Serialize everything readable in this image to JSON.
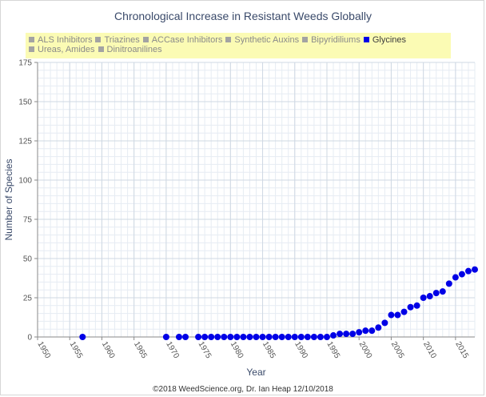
{
  "chart_data": {
    "type": "scatter",
    "title": "Chronological Increase in Resistant Weeds Globally",
    "xlabel": "Year",
    "ylabel": "Number of Species",
    "xlim": [
      1950,
      2018
    ],
    "ylim": [
      0,
      175
    ],
    "x_ticks": [
      "1950",
      "1955",
      "1960",
      "1965",
      "1970",
      "1975",
      "1980",
      "1985",
      "1990",
      "1995",
      "2000",
      "2005",
      "2010",
      "2015"
    ],
    "y_ticks": [
      "0",
      "25",
      "50",
      "75",
      "100",
      "125",
      "150",
      "175"
    ],
    "grid": true,
    "legend_position": "top",
    "legend": [
      {
        "name": "ALS Inhibitors",
        "color": "#a3a3a3",
        "active": false
      },
      {
        "name": "Triazines",
        "color": "#a3a3a3",
        "active": false
      },
      {
        "name": "ACCase Inhibitors",
        "color": "#a3a3a3",
        "active": false
      },
      {
        "name": "Synthetic Auxins",
        "color": "#a3a3a3",
        "active": false
      },
      {
        "name": "Bipyridiliums",
        "color": "#a3a3a3",
        "active": false
      },
      {
        "name": "Glycines",
        "color": "#0000e6",
        "active": true
      },
      {
        "name": "Ureas, Amides",
        "color": "#a3a3a3",
        "active": false
      },
      {
        "name": "Dinitroanilines",
        "color": "#a3a3a3",
        "active": false
      }
    ],
    "series": [
      {
        "name": "Glycines",
        "color": "#0000e6",
        "points": [
          [
            1957,
            0
          ],
          [
            1970,
            0
          ],
          [
            1972,
            0
          ],
          [
            1973,
            0
          ],
          [
            1975,
            0
          ],
          [
            1976,
            0
          ],
          [
            1977,
            0
          ],
          [
            1978,
            0
          ],
          [
            1979,
            0
          ],
          [
            1980,
            0
          ],
          [
            1981,
            0
          ],
          [
            1982,
            0
          ],
          [
            1983,
            0
          ],
          [
            1984,
            0
          ],
          [
            1985,
            0
          ],
          [
            1986,
            0
          ],
          [
            1987,
            0
          ],
          [
            1988,
            0
          ],
          [
            1989,
            0
          ],
          [
            1990,
            0
          ],
          [
            1991,
            0
          ],
          [
            1992,
            0
          ],
          [
            1993,
            0
          ],
          [
            1994,
            0
          ],
          [
            1995,
            0
          ],
          [
            1996,
            1
          ],
          [
            1997,
            2
          ],
          [
            1998,
            2
          ],
          [
            1999,
            2
          ],
          [
            2000,
            3
          ],
          [
            2001,
            4
          ],
          [
            2002,
            4
          ],
          [
            2003,
            6
          ],
          [
            2004,
            9
          ],
          [
            2005,
            14
          ],
          [
            2006,
            14
          ],
          [
            2007,
            16
          ],
          [
            2008,
            19
          ],
          [
            2009,
            20
          ],
          [
            2010,
            25
          ],
          [
            2011,
            26
          ],
          [
            2012,
            28
          ],
          [
            2013,
            29
          ],
          [
            2014,
            34
          ],
          [
            2015,
            38
          ],
          [
            2016,
            40
          ],
          [
            2017,
            42
          ],
          [
            2018,
            43
          ]
        ]
      }
    ]
  },
  "credit": "©2018 WeedScience.org, Dr. Ian Heap 12/10/2018"
}
